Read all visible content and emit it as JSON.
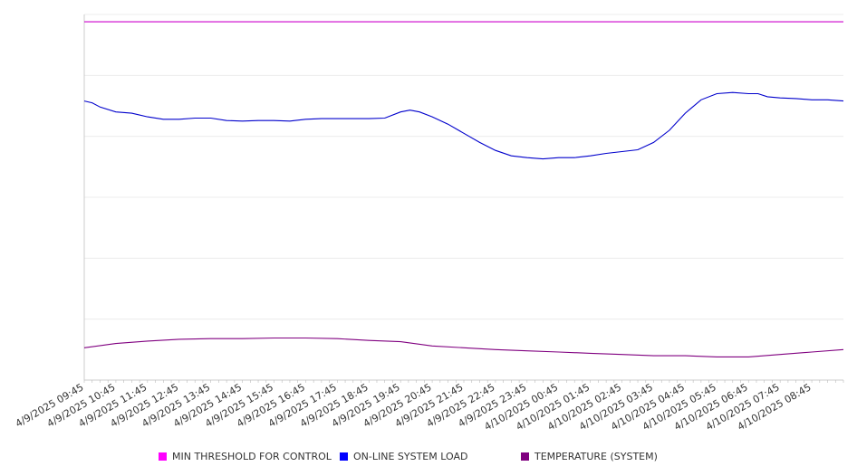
{
  "chart_data": {
    "type": "line",
    "title": "",
    "xlabel": "",
    "ylabel": "",
    "grid": true,
    "legend_position": "bottom",
    "x_tick_labels": [
      "4/9/2025 09:45",
      "4/9/2025 10:45",
      "4/9/2025 11:45",
      "4/9/2025 12:45",
      "4/9/2025 13:45",
      "4/9/2025 14:45",
      "4/9/2025 15:45",
      "4/9/2025 16:45",
      "4/9/2025 17:45",
      "4/9/2025 18:45",
      "4/9/2025 19:45",
      "4/9/2025 20:45",
      "4/9/2025 21:45",
      "4/9/2025 22:45",
      "4/9/2025 23:45",
      "4/10/2025 00:45",
      "4/10/2025 01:45",
      "4/10/2025 02:45",
      "4/10/2025 03:45",
      "4/10/2025 04:45",
      "4/10/2025 05:45",
      "4/10/2025 06:45",
      "4/10/2025 07:45",
      "4/10/2025 08:45"
    ],
    "x_range": [
      0,
      24
    ],
    "y_range": [
      0,
      6
    ],
    "y_gridlines": [
      1,
      2,
      3,
      4,
      5,
      6
    ],
    "series": [
      {
        "name": "MIN THRESHOLD FOR CONTROL",
        "color": "#cc00cc",
        "x": [
          0,
          24
        ],
        "y": [
          5.88,
          5.88
        ]
      },
      {
        "name": "ON-LINE SYSTEM LOAD",
        "color": "#0000cc",
        "x": [
          0,
          0.25,
          0.5,
          1,
          1.5,
          2,
          2.5,
          3,
          3.5,
          4,
          4.5,
          5,
          5.5,
          6,
          6.5,
          7,
          7.5,
          8,
          8.5,
          9,
          9.5,
          10,
          10.3,
          10.6,
          11,
          11.5,
          12,
          12.5,
          13,
          13.5,
          14,
          14.5,
          15,
          15.5,
          16,
          16.5,
          17,
          17.5,
          18,
          18.5,
          19,
          19.5,
          20,
          20.5,
          21,
          21.3,
          21.6,
          22,
          22.5,
          23,
          23.5,
          24
        ],
        "y": [
          4.58,
          4.55,
          4.48,
          4.4,
          4.38,
          4.32,
          4.28,
          4.28,
          4.3,
          4.3,
          4.26,
          4.25,
          4.26,
          4.26,
          4.25,
          4.28,
          4.29,
          4.29,
          4.29,
          4.29,
          4.3,
          4.4,
          4.43,
          4.4,
          4.32,
          4.2,
          4.05,
          3.9,
          3.77,
          3.68,
          3.65,
          3.63,
          3.65,
          3.65,
          3.68,
          3.72,
          3.75,
          3.78,
          3.9,
          4.1,
          4.38,
          4.6,
          4.7,
          4.72,
          4.7,
          4.7,
          4.65,
          4.63,
          4.62,
          4.6,
          4.6,
          4.58
        ]
      },
      {
        "name": "TEMPERATURE (SYSTEM)",
        "color": "#800080",
        "x": [
          0,
          1,
          2,
          3,
          4,
          5,
          6,
          7,
          8,
          9,
          10,
          11,
          12,
          13,
          14,
          15,
          16,
          17,
          18,
          19,
          20,
          21,
          22,
          23,
          24
        ],
        "y": [
          0.53,
          0.6,
          0.64,
          0.67,
          0.68,
          0.68,
          0.69,
          0.69,
          0.68,
          0.65,
          0.63,
          0.56,
          0.53,
          0.5,
          0.48,
          0.46,
          0.44,
          0.42,
          0.4,
          0.4,
          0.38,
          0.38,
          0.42,
          0.46,
          0.5
        ]
      }
    ]
  },
  "legend": [
    {
      "label": "MIN THRESHOLD FOR CONTROL",
      "color": "#ff00ff"
    },
    {
      "label": "ON-LINE SYSTEM LOAD",
      "color": "#0000ff"
    },
    {
      "label": "TEMPERATURE (SYSTEM)",
      "color": "#800080"
    }
  ]
}
